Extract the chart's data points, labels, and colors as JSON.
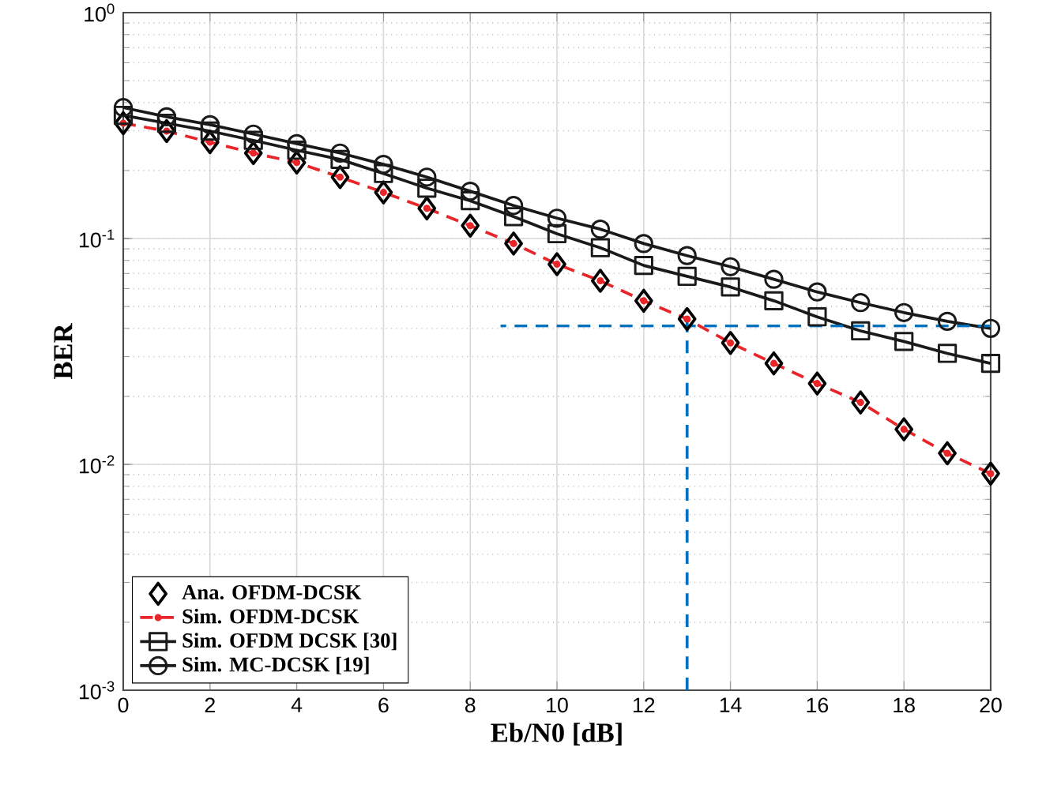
{
  "chart_data": {
    "type": "line",
    "xlabel": "Eb/N0 [dB]",
    "ylabel": "BER",
    "log": "y",
    "grid": true,
    "legend": "bottom left",
    "x": [
      0,
      1,
      2,
      3,
      4,
      5,
      6,
      7,
      8,
      9,
      10,
      11,
      12,
      13,
      14,
      15,
      16,
      17,
      18,
      19,
      20
    ],
    "xlim": [
      0,
      20
    ],
    "xticks": [
      0,
      2,
      4,
      6,
      8,
      10,
      12,
      14,
      16,
      18,
      20
    ],
    "ylim": [
      0.001,
      1
    ],
    "yticks": [
      {
        "value": 0.001,
        "label": "10$^{-3}$"
      },
      {
        "value": 0.01,
        "label": "10$^{-2}$"
      },
      {
        "value": 0.1,
        "label": "10$^{-1}$"
      },
      {
        "value": 1,
        "label": "10$^{0}$"
      }
    ],
    "series": [
      {
        "name": "Ana. OFDM-DCSK",
        "type": "scatter",
        "marker": "diamond",
        "color": "#000000",
        "values": [
          0.324,
          0.299,
          0.267,
          0.239,
          0.217,
          0.187,
          0.16,
          0.136,
          0.114,
          0.095,
          0.077,
          0.065,
          0.053,
          0.044,
          0.0345,
          0.028,
          0.0228,
          0.0188,
          0.0143,
          0.0112,
          0.0091
        ]
      },
      {
        "name": "Sim. OFDM-DCSK",
        "marker": "circle",
        "line_style": "dashed",
        "color": "#e8262a",
        "values": [
          0.324,
          0.299,
          0.267,
          0.239,
          0.217,
          0.187,
          0.16,
          0.136,
          0.114,
          0.095,
          0.077,
          0.065,
          0.053,
          0.044,
          0.0345,
          0.028,
          0.0228,
          0.0188,
          0.0143,
          0.0112,
          0.0091
        ]
      },
      {
        "name": "Sim. OFDM DCSK  [30]",
        "marker": "square",
        "line_style": "solid",
        "color": "#1a1a1a",
        "values": [
          0.351,
          0.324,
          0.299,
          0.272,
          0.246,
          0.224,
          0.194,
          0.167,
          0.147,
          0.125,
          0.105,
          0.091,
          0.076,
          0.068,
          0.061,
          0.053,
          0.045,
          0.039,
          0.035,
          0.031,
          0.028
        ]
      },
      {
        "name": "Sim. MC-DCSK [19]",
        "marker": "circle",
        "line_style": "solid",
        "color": "#1a1a1a",
        "values": [
          0.38,
          0.346,
          0.319,
          0.29,
          0.263,
          0.239,
          0.213,
          0.187,
          0.162,
          0.14,
          0.123,
          0.11,
          0.095,
          0.084,
          0.075,
          0.066,
          0.058,
          0.052,
          0.047,
          0.043,
          0.04
        ]
      },
      {
        "marker": "none",
        "line_style": "dashed",
        "color": "#0072bd",
        "x": [
          13,
          13
        ],
        "values": [
          0.001,
          0.044
        ]
      },
      {
        "marker": "none",
        "line_style": "dashed",
        "color": "#0072bd",
        "x": [
          20,
          8.7
        ],
        "values": [
          0.041,
          0.041
        ]
      }
    ]
  }
}
